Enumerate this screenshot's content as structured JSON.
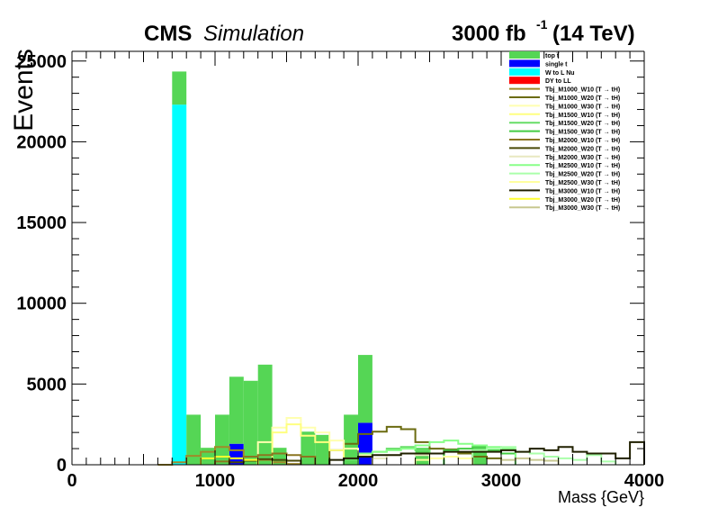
{
  "header": {
    "experiment": "CMS",
    "tag": "Simulation",
    "lumi_value": "3000 fb",
    "lumi_exp": "-1",
    "energy": "(14 TeV)"
  },
  "chart_data": {
    "type": "histogram",
    "title": "",
    "xlabel": "Mass {GeV}",
    "ylabel": "Events",
    "xlim": [
      0,
      4000
    ],
    "ylim": [
      0,
      25600
    ],
    "bin_width": 100,
    "x_ticks": [
      0,
      1000,
      2000,
      3000,
      4000
    ],
    "y_ticks": [
      0,
      5000,
      10000,
      15000,
      20000,
      25000
    ],
    "legend_position": "top-right",
    "stacked": [
      {
        "name": "W to L Nu",
        "color": "#00ffff",
        "bins": [
          {
            "x0": 700,
            "x1": 800,
            "y": 22300
          }
        ]
      },
      {
        "name": "single t",
        "color": "#0000ff",
        "bins": [
          {
            "x0": 1100,
            "x1": 1200,
            "y": 1300
          },
          {
            "x0": 2000,
            "x1": 2100,
            "y": 2600
          }
        ]
      },
      {
        "name": "DY to LL",
        "color": "#ff0000",
        "bins": []
      },
      {
        "name": "top t̅",
        "color": "#55d655",
        "bins": [
          {
            "x0": 700,
            "x1": 800,
            "y": 2050
          },
          {
            "x0": 800,
            "x1": 900,
            "y": 3100
          },
          {
            "x0": 900,
            "x1": 1000,
            "y": 1050
          },
          {
            "x0": 1000,
            "x1": 1100,
            "y": 3100
          },
          {
            "x0": 1100,
            "x1": 1200,
            "y": 4150
          },
          {
            "x0": 1200,
            "x1": 1300,
            "y": 5200
          },
          {
            "x0": 1300,
            "x1": 1400,
            "y": 6200
          },
          {
            "x0": 1400,
            "x1": 1500,
            "y": 1050
          },
          {
            "x0": 1600,
            "x1": 1700,
            "y": 2050
          },
          {
            "x0": 1700,
            "x1": 1800,
            "y": 1850
          },
          {
            "x0": 1900,
            "x1": 2000,
            "y": 3100
          },
          {
            "x0": 2000,
            "x1": 2100,
            "y": 4200
          },
          {
            "x0": 2400,
            "x1": 2500,
            "y": 1050
          },
          {
            "x0": 2800,
            "x1": 2900,
            "y": 1050
          }
        ]
      }
    ],
    "signals": [
      {
        "name": "Tbj_M1000_W10 (T → tH)",
        "color": "#a08a2a",
        "bins": [
          {
            "x0": 600,
            "x1": 700,
            "y": 0
          },
          {
            "x0": 700,
            "x1": 800,
            "y": 150
          },
          {
            "x0": 800,
            "x1": 900,
            "y": 550
          },
          {
            "x0": 900,
            "x1": 1000,
            "y": 800
          },
          {
            "x0": 1000,
            "x1": 1100,
            "y": 1100
          },
          {
            "x0": 1100,
            "x1": 1200,
            "y": 900
          },
          {
            "x0": 1200,
            "x1": 1300,
            "y": 500
          },
          {
            "x0": 1300,
            "x1": 1400,
            "y": 300
          },
          {
            "x0": 1400,
            "x1": 1500,
            "y": 150
          },
          {
            "x0": 1500,
            "x1": 1600,
            "y": 50
          }
        ]
      },
      {
        "name": "Tbj_M1000_W20 (T → tH)",
        "color": "#6b6b10",
        "bins": [
          {
            "x0": 1800,
            "x1": 1900,
            "y": 900
          },
          {
            "x0": 1900,
            "x1": 2000,
            "y": 1300
          },
          {
            "x0": 2000,
            "x1": 2100,
            "y": 1900
          },
          {
            "x0": 2100,
            "x1": 2200,
            "y": 2050
          },
          {
            "x0": 2200,
            "x1": 2300,
            "y": 2350
          },
          {
            "x0": 2300,
            "x1": 2400,
            "y": 2200
          },
          {
            "x0": 2400,
            "x1": 2500,
            "y": 1400
          },
          {
            "x0": 2500,
            "x1": 2600,
            "y": 1000
          },
          {
            "x0": 2600,
            "x1": 2700,
            "y": 950
          },
          {
            "x0": 2700,
            "x1": 2800,
            "y": 700
          },
          {
            "x0": 2800,
            "x1": 2900,
            "y": 500
          },
          {
            "x0": 2900,
            "x1": 3000,
            "y": 400
          }
        ]
      },
      {
        "name": "Tbj_M1000_W30 (T → tH)",
        "color": "#ffffb0",
        "bins": [
          {
            "x0": 1300,
            "x1": 1400,
            "y": 1400
          },
          {
            "x0": 1400,
            "x1": 1500,
            "y": 2300
          },
          {
            "x0": 1500,
            "x1": 1600,
            "y": 2900
          },
          {
            "x0": 1600,
            "x1": 1700,
            "y": 2300
          },
          {
            "x0": 1700,
            "x1": 1800,
            "y": 2000
          },
          {
            "x0": 1800,
            "x1": 1900,
            "y": 1500
          },
          {
            "x0": 1900,
            "x1": 2000,
            "y": 1000
          },
          {
            "x0": 2000,
            "x1": 2100,
            "y": 600
          }
        ]
      },
      {
        "name": "Tbj_M1500_W10 (T → tH)",
        "color": "#ffff80",
        "bins": [
          {
            "x0": 1400,
            "x1": 1500,
            "y": 2000
          },
          {
            "x0": 1500,
            "x1": 1600,
            "y": 2500
          },
          {
            "x0": 1600,
            "x1": 1700,
            "y": 1800
          },
          {
            "x0": 1700,
            "x1": 1800,
            "y": 1400
          },
          {
            "x0": 1800,
            "x1": 1900,
            "y": 900
          },
          {
            "x0": 1900,
            "x1": 2000,
            "y": 400
          }
        ]
      },
      {
        "name": "Tbj_M1500_W20 (T → tH)",
        "color": "#66dd66",
        "bins": [
          {
            "x0": 1900,
            "x1": 2000,
            "y": 300
          },
          {
            "x0": 2000,
            "x1": 2100,
            "y": 500
          },
          {
            "x0": 2100,
            "x1": 2200,
            "y": 800
          },
          {
            "x0": 2200,
            "x1": 2300,
            "y": 1000
          },
          {
            "x0": 2300,
            "x1": 2400,
            "y": 1100
          },
          {
            "x0": 2400,
            "x1": 2500,
            "y": 900
          },
          {
            "x0": 2500,
            "x1": 2600,
            "y": 700
          }
        ]
      },
      {
        "name": "Tbj_M1500_W30 (T → tH)",
        "color": "#44cc44",
        "bins": [
          {
            "x0": 2600,
            "x1": 2700,
            "y": 900
          },
          {
            "x0": 2700,
            "x1": 2800,
            "y": 1000
          },
          {
            "x0": 2800,
            "x1": 2900,
            "y": 1100
          },
          {
            "x0": 2900,
            "x1": 3000,
            "y": 900
          },
          {
            "x0": 3000,
            "x1": 3100,
            "y": 700
          }
        ]
      },
      {
        "name": "Tbj_M2000_W10 (T → tH)",
        "color": "#8b7520",
        "bins": [
          {
            "x0": 1000,
            "x1": 1100,
            "y": 200
          },
          {
            "x0": 1100,
            "x1": 1200,
            "y": 400
          },
          {
            "x0": 1200,
            "x1": 1300,
            "y": 500
          },
          {
            "x0": 1300,
            "x1": 1400,
            "y": 600
          },
          {
            "x0": 1400,
            "x1": 1500,
            "y": 700
          },
          {
            "x0": 1500,
            "x1": 1600,
            "y": 600
          },
          {
            "x0": 1600,
            "x1": 1700,
            "y": 500
          }
        ]
      },
      {
        "name": "Tbj_M2000_W20 (T → tH)",
        "color": "#4a4a08",
        "bins": [
          {
            "x0": 1100,
            "x1": 1200,
            "y": 150
          },
          {
            "x0": 1200,
            "x1": 1300,
            "y": 250
          },
          {
            "x0": 1300,
            "x1": 1400,
            "y": 350
          },
          {
            "x0": 1400,
            "x1": 1500,
            "y": 300
          },
          {
            "x0": 1500,
            "x1": 1600,
            "y": 250
          }
        ]
      },
      {
        "name": "Tbj_M2000_W30 (T → tH)",
        "color": "#e8e8c0",
        "bins": [
          {
            "x0": 2100,
            "x1": 2200,
            "y": 400
          },
          {
            "x0": 2200,
            "x1": 2300,
            "y": 600
          },
          {
            "x0": 2300,
            "x1": 2400,
            "y": 700
          },
          {
            "x0": 2400,
            "x1": 2500,
            "y": 600
          }
        ]
      },
      {
        "name": "Tbj_M2500_W10 (T → tH)",
        "color": "#88ff88",
        "bins": [
          {
            "x0": 2000,
            "x1": 2100,
            "y": 700
          },
          {
            "x0": 2100,
            "x1": 2200,
            "y": 800
          },
          {
            "x0": 2200,
            "x1": 2300,
            "y": 900
          },
          {
            "x0": 2300,
            "x1": 2400,
            "y": 1000
          },
          {
            "x0": 2400,
            "x1": 2500,
            "y": 1200
          },
          {
            "x0": 2500,
            "x1": 2600,
            "y": 1400
          },
          {
            "x0": 2600,
            "x1": 2700,
            "y": 1500
          },
          {
            "x0": 2700,
            "x1": 2800,
            "y": 1300
          },
          {
            "x0": 2800,
            "x1": 2900,
            "y": 1200
          },
          {
            "x0": 2900,
            "x1": 3000,
            "y": 1100
          },
          {
            "x0": 3000,
            "x1": 3100,
            "y": 1000
          }
        ]
      },
      {
        "name": "Tbj_M2500_W20 (T → tH)",
        "color": "#aaffaa",
        "bins": [
          {
            "x0": 2800,
            "x1": 2900,
            "y": 900
          },
          {
            "x0": 2900,
            "x1": 3000,
            "y": 1000
          },
          {
            "x0": 3000,
            "x1": 3100,
            "y": 1100
          },
          {
            "x0": 3100,
            "x1": 3200,
            "y": 800
          },
          {
            "x0": 3200,
            "x1": 3300,
            "y": 700
          },
          {
            "x0": 3300,
            "x1": 3400,
            "y": 500
          },
          {
            "x0": 3400,
            "x1": 3500,
            "y": 400
          },
          {
            "x0": 3500,
            "x1": 3600,
            "y": 300
          },
          {
            "x0": 3600,
            "x1": 3700,
            "y": 600
          },
          {
            "x0": 3700,
            "x1": 3800,
            "y": 200
          }
        ]
      },
      {
        "name": "Tbj_M2500_W30 (T → tH)",
        "color": "#ffffa0",
        "bins": [
          {
            "x0": 2400,
            "x1": 2500,
            "y": 300
          },
          {
            "x0": 2500,
            "x1": 2600,
            "y": 400
          },
          {
            "x0": 2600,
            "x1": 2700,
            "y": 500
          },
          {
            "x0": 2700,
            "x1": 2800,
            "y": 400
          }
        ]
      },
      {
        "name": "Tbj_M3000_W10 (T → tH)",
        "color": "#202000",
        "bins": [
          {
            "x0": 1800,
            "x1": 1900,
            "y": 300
          },
          {
            "x0": 1900,
            "x1": 2000,
            "y": 400
          },
          {
            "x0": 2000,
            "x1": 2100,
            "y": 500
          },
          {
            "x0": 2100,
            "x1": 2200,
            "y": 600
          },
          {
            "x0": 2200,
            "x1": 2300,
            "y": 600
          },
          {
            "x0": 2300,
            "x1": 2400,
            "y": 700
          },
          {
            "x0": 2400,
            "x1": 2500,
            "y": 700
          },
          {
            "x0": 2500,
            "x1": 2600,
            "y": 700
          },
          {
            "x0": 2600,
            "x1": 2700,
            "y": 800
          },
          {
            "x0": 2700,
            "x1": 2800,
            "y": 800
          },
          {
            "x0": 2800,
            "x1": 2900,
            "y": 800
          },
          {
            "x0": 2900,
            "x1": 3000,
            "y": 800
          },
          {
            "x0": 3000,
            "x1": 3100,
            "y": 900
          },
          {
            "x0": 3100,
            "x1": 3200,
            "y": 800
          },
          {
            "x0": 3200,
            "x1": 3300,
            "y": 1000
          },
          {
            "x0": 3300,
            "x1": 3400,
            "y": 900
          },
          {
            "x0": 3400,
            "x1": 3500,
            "y": 1100
          },
          {
            "x0": 3500,
            "x1": 3600,
            "y": 800
          },
          {
            "x0": 3600,
            "x1": 3700,
            "y": 700
          },
          {
            "x0": 3700,
            "x1": 3800,
            "y": 700
          },
          {
            "x0": 3800,
            "x1": 3900,
            "y": 400
          },
          {
            "x0": 3900,
            "x1": 4000,
            "y": 1400
          }
        ]
      },
      {
        "name": "Tbj_M3000_W20 (T → tH)",
        "color": "#ffff30",
        "bins": [
          {
            "x0": 900,
            "x1": 1000,
            "y": 400
          },
          {
            "x0": 1000,
            "x1": 1100,
            "y": 500
          },
          {
            "x0": 1100,
            "x1": 1200,
            "y": 400
          },
          {
            "x0": 1200,
            "x1": 1300,
            "y": 300
          }
        ]
      },
      {
        "name": "Tbj_M3000_W30 (T → tH)",
        "color": "#c8c890",
        "bins": [
          {
            "x0": 3000,
            "x1": 3100,
            "y": 300
          },
          {
            "x0": 3100,
            "x1": 3200,
            "y": 400
          },
          {
            "x0": 3200,
            "x1": 3300,
            "y": 300
          },
          {
            "x0": 3300,
            "x1": 3400,
            "y": 250
          }
        ]
      }
    ]
  }
}
